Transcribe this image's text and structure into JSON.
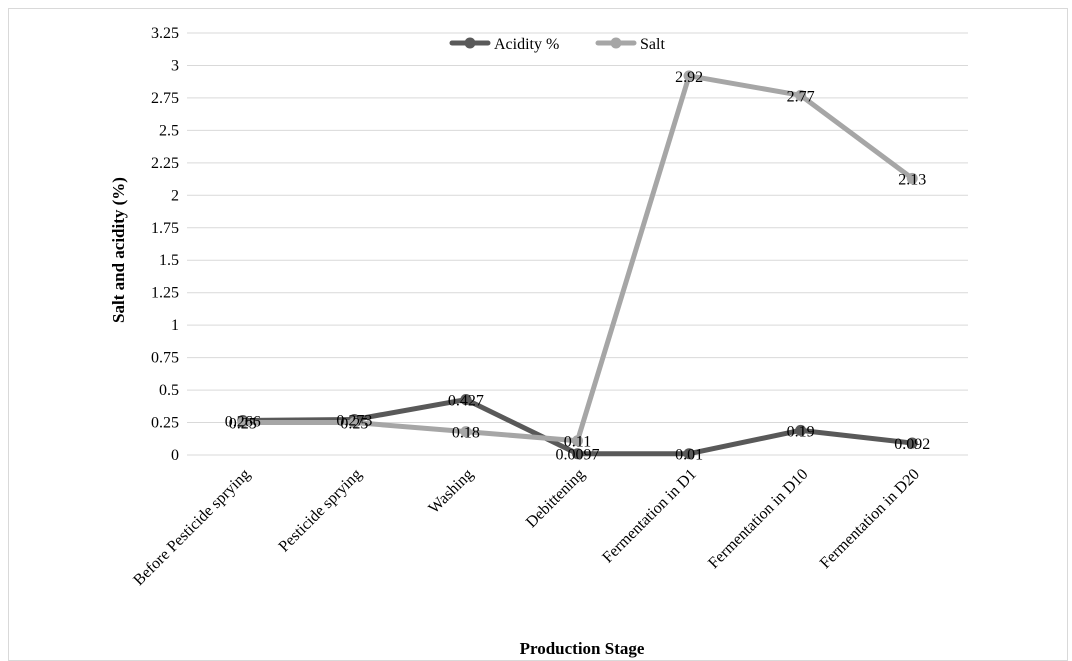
{
  "chart_data": {
    "type": "line",
    "xlabel": "Production Stage",
    "ylabel": "Salt and acidity (%)",
    "ylim": [
      0,
      3.25
    ],
    "yticks": [
      "0",
      "0.25",
      "0.5",
      "0.75",
      "1",
      "1.25",
      "1.5",
      "1.75",
      "2",
      "2.25",
      "2.5",
      "2.75",
      "3",
      "3.25"
    ],
    "categories": [
      "Before Pesticide sprying",
      "Pesticide sprying",
      "Washing",
      "Debittening",
      "Fermentation in D1",
      "Fermentation in D10",
      "Fermentation in D20"
    ],
    "grid": true,
    "legend_position": "top",
    "series": [
      {
        "name": "Acidity %",
        "color": "#595959",
        "values": [
          0.266,
          0.273,
          0.427,
          0.0097,
          0.01,
          0.19,
          0.092
        ],
        "labels": [
          "0.266",
          "0.273",
          "0.427",
          "0.0097",
          "0.01",
          "0.19",
          "0.092"
        ]
      },
      {
        "name": "Salt",
        "color": "#a6a6a6",
        "values": [
          0.25,
          0.25,
          0.18,
          0.11,
          2.92,
          2.77,
          2.13
        ],
        "labels": [
          "0.25",
          "0.25",
          "0.18",
          "0.11",
          "2.92",
          "2.77",
          "2.13"
        ]
      }
    ]
  }
}
